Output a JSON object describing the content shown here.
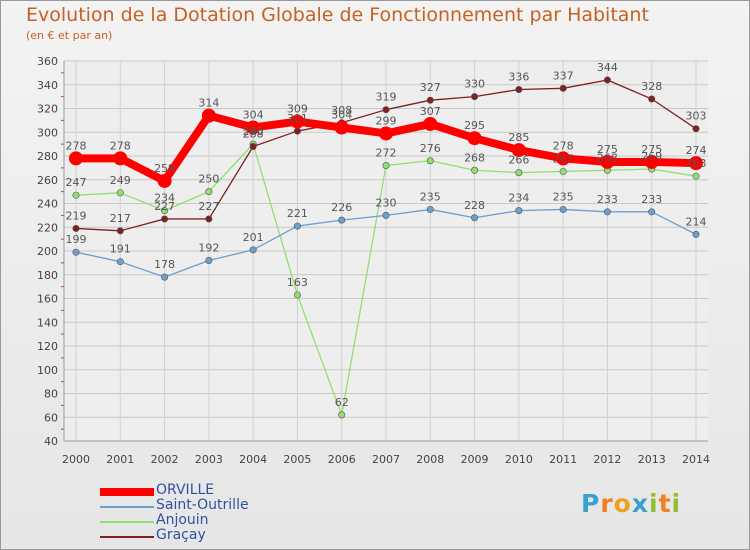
{
  "title": "Evolution de la Dotation Globale de Fonctionnement par Habitant",
  "subtitle": "(en € et par an)",
  "logo": {
    "text": "Proxiti",
    "letters": [
      "P",
      "r",
      "o",
      "x",
      "i",
      "t",
      "i"
    ],
    "colors": [
      "#3aa0d0",
      "#f08020",
      "#f0a020",
      "#3aa0d0",
      "#90c030",
      "#f08020",
      "#90c030"
    ]
  },
  "chart_data": {
    "type": "line",
    "x": [
      "2000",
      "2001",
      "2002",
      "2003",
      "2004",
      "2005",
      "2006",
      "2007",
      "2008",
      "2009",
      "2010",
      "2011",
      "2012",
      "2013",
      "2014"
    ],
    "ylim": [
      40,
      360
    ],
    "yticks": [
      "40",
      "60",
      "80",
      "100",
      "120",
      "140",
      "160",
      "180",
      "200",
      "220",
      "240",
      "260",
      "280",
      "300",
      "320",
      "340",
      "360"
    ],
    "grid": true,
    "legend_position": "bottom-left",
    "series": [
      {
        "name": "ORVILLE",
        "color": "#ff0000",
        "width": "thick",
        "values": [
          278,
          278,
          259,
          314,
          304,
          309,
          304,
          299,
          307,
          295,
          285,
          278,
          275,
          275,
          274
        ],
        "labels": [
          "278",
          "278",
          "259",
          "314",
          "304",
          "309",
          "304",
          "299",
          "307",
          "295",
          "285",
          "278",
          "275",
          "275",
          "274"
        ]
      },
      {
        "name": "Saint-Outrille",
        "color": "#6ca0d0",
        "width": "thin",
        "values": [
          199,
          191,
          178,
          192,
          201,
          221,
          226,
          230,
          235,
          228,
          234,
          235,
          233,
          233,
          214
        ],
        "labels": [
          "199",
          "191",
          "178",
          "192",
          "201",
          "221",
          "226",
          "230",
          "235",
          "228",
          "234",
          "235",
          "233",
          "233",
          "214"
        ]
      },
      {
        "name": "Anjouin",
        "color": "#90e070",
        "width": "thin",
        "values": [
          247,
          249,
          234,
          250,
          290,
          163,
          62,
          272,
          276,
          268,
          266,
          267,
          268,
          269,
          263
        ],
        "labels": [
          "247",
          "249",
          "234",
          "250",
          "290",
          "163",
          "62",
          "272",
          "276",
          "268",
          "266",
          "267",
          "268",
          "269",
          "263"
        ]
      },
      {
        "name": "Graçay",
        "color": "#802020",
        "width": "thin",
        "values": [
          219,
          217,
          227,
          227,
          288,
          301,
          308,
          319,
          327,
          330,
          336,
          337,
          344,
          328,
          303
        ],
        "labels": [
          "219",
          "217",
          "227",
          "227",
          "288",
          "301",
          "308",
          "319",
          "327",
          "330",
          "336",
          "337",
          "344",
          "328",
          "303"
        ]
      }
    ]
  }
}
